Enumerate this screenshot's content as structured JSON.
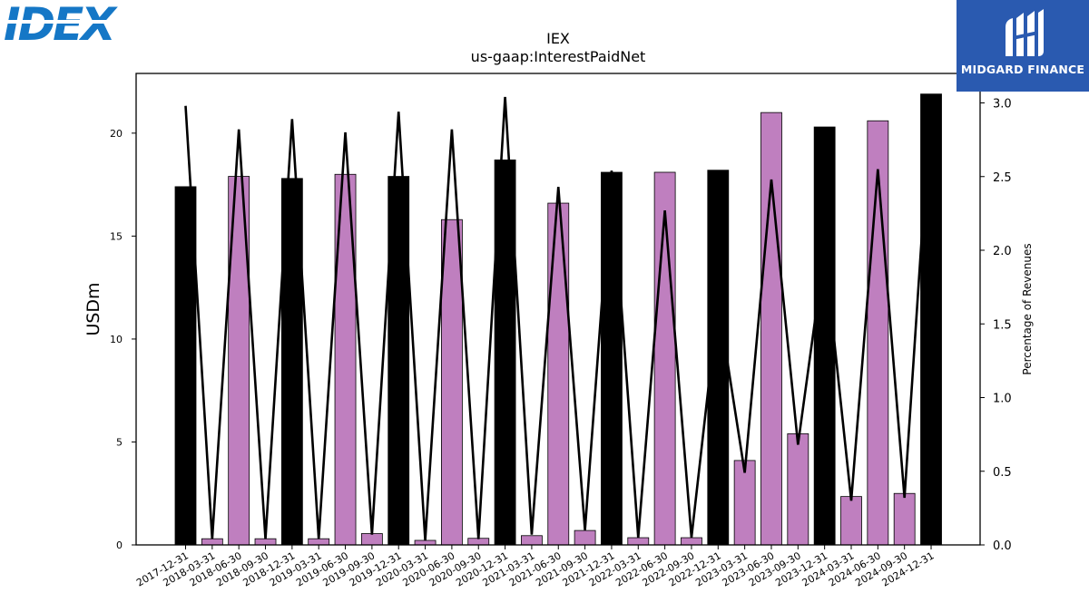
{
  "brand": {
    "company_logo_text": "IDEX",
    "publisher_name": "MIDGARD FINANCE"
  },
  "colors": {
    "bar_primary": "#000000",
    "bar_secondary": "#bf7fbf",
    "line": "#000000",
    "publisher_bg": "#2a5ab0",
    "company_logo": "#1577c6"
  },
  "chart_data": {
    "type": "bar",
    "title": "IEX",
    "subtitle": "us-gaap:InterestPaidNet",
    "ylabel": "USDm",
    "y2label": "Percentage of Revenues",
    "ylim": [
      0,
      22.9
    ],
    "y2lim": [
      0,
      3.2
    ],
    "yticks": [
      "0",
      "5",
      "10",
      "15",
      "20"
    ],
    "y2ticks": [
      "0.0",
      "0.5",
      "1.0",
      "1.5",
      "2.0",
      "2.5",
      "3.0"
    ],
    "categories": [
      "2017-12-31",
      "2018-03-31",
      "2018-06-30",
      "2018-09-30",
      "2018-12-31",
      "2019-03-31",
      "2019-06-30",
      "2019-09-30",
      "2019-12-31",
      "2020-03-31",
      "2020-06-30",
      "2020-09-30",
      "2020-12-31",
      "2021-03-31",
      "2021-06-30",
      "2021-09-30",
      "2021-12-31",
      "2022-03-31",
      "2022-06-30",
      "2022-09-30",
      "2022-12-31",
      "2023-03-31",
      "2023-06-30",
      "2023-09-30",
      "2023-12-31",
      "2024-03-31",
      "2024-06-30",
      "2024-09-30",
      "2024-12-31"
    ],
    "series": [
      {
        "kind": "bar",
        "axis": "left",
        "values": [
          17.4,
          0.3,
          17.9,
          0.3,
          17.8,
          0.3,
          18.0,
          0.55,
          17.9,
          0.22,
          15.8,
          0.32,
          18.7,
          0.45,
          16.6,
          0.7,
          18.1,
          0.35,
          18.1,
          0.35,
          18.2,
          4.1,
          21.0,
          5.4,
          20.3,
          2.35,
          20.6,
          2.5,
          21.9
        ],
        "emphasis": [
          true,
          false,
          false,
          false,
          true,
          false,
          false,
          false,
          true,
          false,
          false,
          false,
          true,
          false,
          false,
          false,
          true,
          false,
          false,
          false,
          true,
          false,
          false,
          false,
          true,
          false,
          false,
          false,
          true
        ]
      },
      {
        "kind": "line",
        "axis": "right",
        "values": [
          2.98,
          0.04,
          2.82,
          0.04,
          2.89,
          0.04,
          2.8,
          0.07,
          2.94,
          0.03,
          2.82,
          0.04,
          3.04,
          0.07,
          2.43,
          0.1,
          2.54,
          0.05,
          2.27,
          0.05,
          1.65,
          0.49,
          2.48,
          0.68,
          2.0,
          0.3,
          2.55,
          0.32,
          3.05
        ]
      }
    ],
    "grid": false,
    "legend": "none"
  }
}
